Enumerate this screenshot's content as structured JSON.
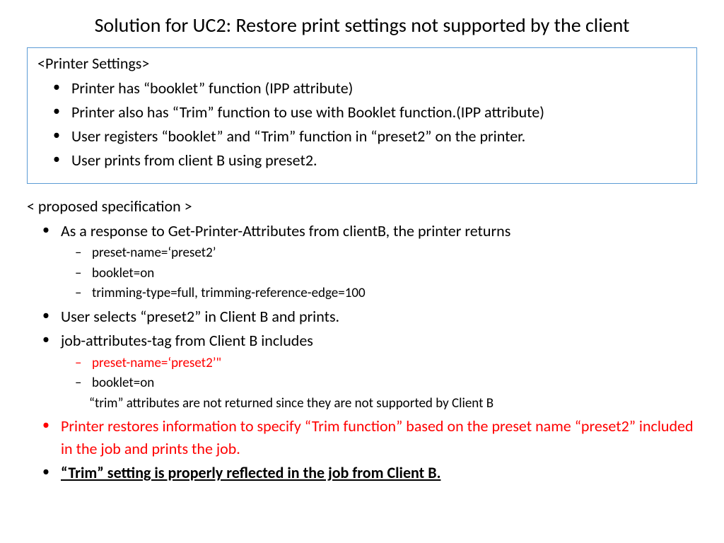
{
  "title": "Solution for UC2: Restore print settings not supported by the client",
  "box": {
    "header": "<Printer Settings>",
    "items": [
      "Printer has “booklet” function (IPP attribute)",
      "Printer also has “Trim” function to use with Booklet function.(IPP attribute)",
      "User registers “booklet” and “Trim” function in “preset2” on the printer.",
      "User prints from client B using preset2."
    ]
  },
  "spec": {
    "header": "< proposed specification >",
    "b1": {
      "text": "As a response to Get-Printer-Attributes from clientB, the printer returns",
      "sub": [
        "preset-name=‘preset2’",
        "booklet=on",
        "trimming-type=full, trimming-reference-edge=100"
      ]
    },
    "b2": "User selects “preset2” in Client B and prints.",
    "b3": {
      "text": "job-attributes-tag from Client B includes",
      "sub1": "preset-name=‘preset2’\"",
      "sub2": "booklet=on",
      "note": "“trim” attributes are not returned since they are not supported by Client B"
    },
    "b4": "Printer restores information to specify “Trim function” based on the preset name “preset2” included in the job and prints the job.",
    "b5": "“Trim” setting is properly reflected in the job from Client B."
  },
  "colors": {
    "border": "#5b9bd5",
    "red": "#ff0000",
    "text": "#000000",
    "background": "#ffffff"
  }
}
